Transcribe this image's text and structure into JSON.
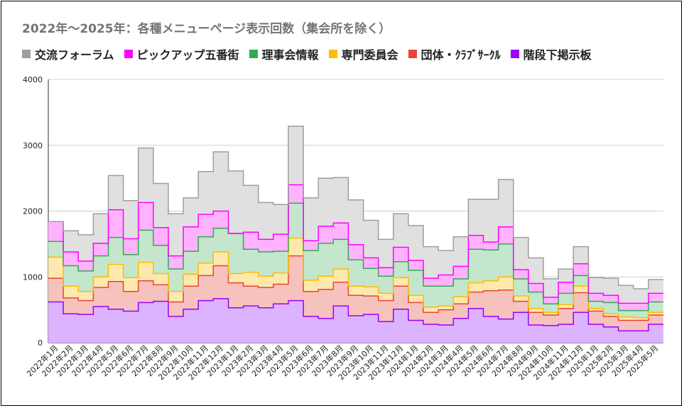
{
  "chart_data": {
    "type": "area",
    "stacked": true,
    "step": true,
    "title": "2022年～2025年：各種メニューページ表示回数（集会所を除く）",
    "xlabel": "",
    "ylabel": "",
    "ylim": [
      0,
      4000
    ],
    "yticks": [
      "0",
      "1000",
      "2000",
      "3000",
      "4000"
    ],
    "grid": true,
    "legend_position": "top-left",
    "categories": [
      "2022年1月",
      "2022年2月",
      "2022年3月",
      "2022年4月",
      "2022年5月",
      "2022年6月",
      "2022年7月",
      "2022年8月",
      "2022年9月",
      "2022年10月",
      "2022年11月",
      "2022年12月",
      "2023年1月",
      "2023年2月",
      "2023年3月",
      "2023年4月",
      "2023年5月",
      "2023年6月",
      "2023年7月",
      "2023年8月",
      "2023年9月",
      "2023年10月",
      "2023年11月",
      "2023年12月",
      "2024年1月",
      "2024年2月",
      "2024年3月",
      "2024年4月",
      "2024年5月",
      "2024年6月",
      "2024年7月",
      "2024年8月",
      "2024年9月",
      "2024年10月",
      "2024年11月",
      "2024年12月",
      "2025年1月",
      "2025年2月",
      "2025年3月",
      "2025年4月",
      "2025年5月"
    ],
    "series": [
      {
        "name": "階段下掲示板",
        "color": "#9900ff",
        "fill": "#dcb3ff",
        "values": [
          620,
          440,
          430,
          550,
          510,
          480,
          610,
          630,
          400,
          510,
          640,
          670,
          530,
          560,
          530,
          590,
          640,
          400,
          370,
          560,
          410,
          430,
          320,
          510,
          340,
          280,
          270,
          370,
          520,
          400,
          360,
          460,
          270,
          260,
          280,
          460,
          280,
          240,
          180,
          180,
          280
        ]
      },
      {
        "name": "団体・ｸﾗﾌﾞｻｰｸﾙ",
        "color": "#ea4335",
        "fill": "#f6c2bd",
        "values": [
          360,
          240,
          210,
          290,
          420,
          300,
          330,
          250,
          220,
          350,
          380,
          500,
          380,
          300,
          310,
          300,
          680,
          380,
          440,
          360,
          310,
          280,
          320,
          350,
          270,
          180,
          230,
          220,
          250,
          390,
          440,
          170,
          190,
          160,
          240,
          300,
          200,
          160,
          160,
          160,
          140
        ]
      },
      {
        "name": "専門委員会",
        "color": "#fbbc04",
        "fill": "#fde9ad",
        "values": [
          320,
          180,
          140,
          160,
          260,
          210,
          280,
          170,
          160,
          180,
          190,
          210,
          140,
          210,
          170,
          170,
          270,
          170,
          200,
          200,
          140,
          140,
          110,
          130,
          110,
          80,
          60,
          110,
          140,
          150,
          200,
          80,
          60,
          40,
          60,
          100,
          40,
          40,
          50,
          40,
          40
        ]
      },
      {
        "name": "理事会情報",
        "color": "#34a853",
        "fill": "#c4e6cc",
        "values": [
          240,
          310,
          310,
          320,
          410,
          350,
          490,
          430,
          340,
          350,
          400,
          360,
          610,
          350,
          370,
          330,
          530,
          450,
          500,
          450,
          400,
          280,
          260,
          240,
          380,
          320,
          300,
          270,
          510,
          470,
          500,
          260,
          250,
          130,
          170,
          160,
          110,
          170,
          100,
          110,
          160
        ]
      },
      {
        "name": "ピックアップ五番街",
        "color": "#ff00ff",
        "fill": "#ffb3ff",
        "values": [
          300,
          210,
          150,
          190,
          420,
          240,
          420,
          270,
          200,
          370,
          340,
          260,
          0,
          260,
          190,
          260,
          280,
          150,
          260,
          250,
          230,
          160,
          130,
          220,
          150,
          120,
          170,
          190,
          210,
          120,
          260,
          140,
          130,
          100,
          170,
          180,
          120,
          110,
          110,
          110,
          130
        ]
      },
      {
        "name": "交流フォーラム",
        "color": "#9e9e9e",
        "fill": "#e0e0e0",
        "values": [
          0,
          320,
          400,
          450,
          520,
          580,
          830,
          670,
          640,
          440,
          650,
          900,
          950,
          710,
          560,
          450,
          890,
          650,
          730,
          690,
          680,
          570,
          430,
          510,
          530,
          480,
          370,
          450,
          550,
          650,
          720,
          490,
          390,
          280,
          200,
          260,
          240,
          260,
          270,
          220,
          210
        ]
      }
    ]
  },
  "legend_order": [
    "交流フォーラム",
    "ピックアップ五番街",
    "理事会情報",
    "専門委員会",
    "団体・ｸﾗﾌﾞｻｰｸﾙ",
    "階段下掲示板"
  ]
}
